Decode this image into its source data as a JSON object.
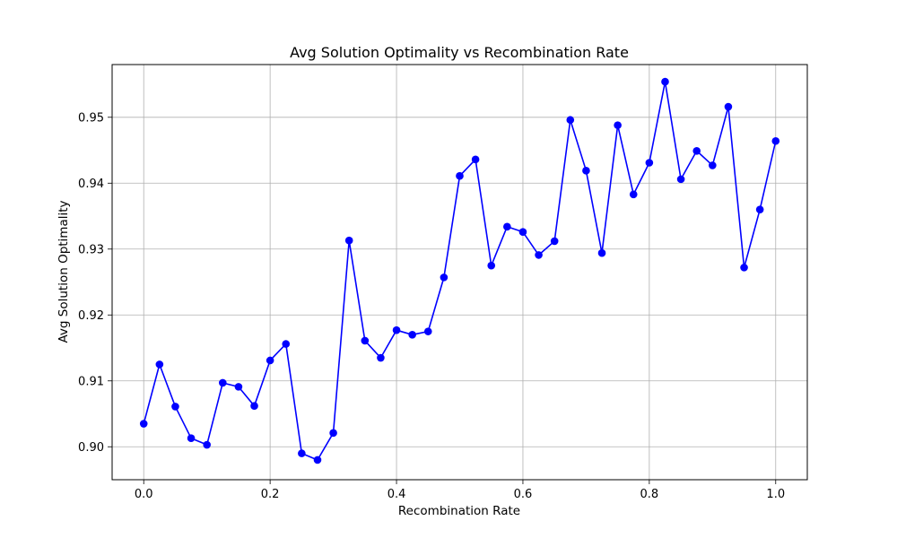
{
  "chart_data": {
    "type": "line",
    "title": "Avg Solution Optimality vs Recombination Rate",
    "xlabel": "Recombination Rate",
    "ylabel": "Avg Solution Optimality",
    "xlim": [
      -0.05,
      1.05
    ],
    "ylim": [
      0.895,
      0.958
    ],
    "xticks": [
      0.0,
      0.2,
      0.4,
      0.6,
      0.8,
      1.0
    ],
    "xtick_labels": [
      "0.0",
      "0.2",
      "0.4",
      "0.6",
      "0.8",
      "1.0"
    ],
    "yticks": [
      0.9,
      0.91,
      0.92,
      0.93,
      0.94,
      0.95
    ],
    "ytick_labels": [
      "0.90",
      "0.91",
      "0.92",
      "0.93",
      "0.94",
      "0.95"
    ],
    "grid": true,
    "color": "#0000ff",
    "marker": "circle",
    "x": [
      0.0,
      0.025,
      0.05,
      0.075,
      0.1,
      0.125,
      0.15,
      0.175,
      0.2,
      0.225,
      0.25,
      0.275,
      0.3,
      0.325,
      0.35,
      0.375,
      0.4,
      0.425,
      0.45,
      0.475,
      0.5,
      0.525,
      0.55,
      0.575,
      0.6,
      0.625,
      0.65,
      0.675,
      0.7,
      0.725,
      0.75,
      0.775,
      0.8,
      0.825,
      0.85,
      0.875,
      0.9,
      0.925,
      0.95,
      0.975,
      1.0
    ],
    "y": [
      0.9035,
      0.9125,
      0.9061,
      0.9013,
      0.9003,
      0.9097,
      0.9091,
      0.9062,
      0.9131,
      0.9156,
      0.899,
      0.898,
      0.9021,
      0.9313,
      0.9161,
      0.9135,
      0.9177,
      0.917,
      0.9175,
      0.9257,
      0.9411,
      0.9436,
      0.9275,
      0.9334,
      0.9326,
      0.9291,
      0.9312,
      0.9496,
      0.9419,
      0.9294,
      0.9488,
      0.9383,
      0.9431,
      0.9554,
      0.9406,
      0.9449,
      0.9427,
      0.9516,
      0.9272,
      0.936,
      0.9464
    ]
  }
}
